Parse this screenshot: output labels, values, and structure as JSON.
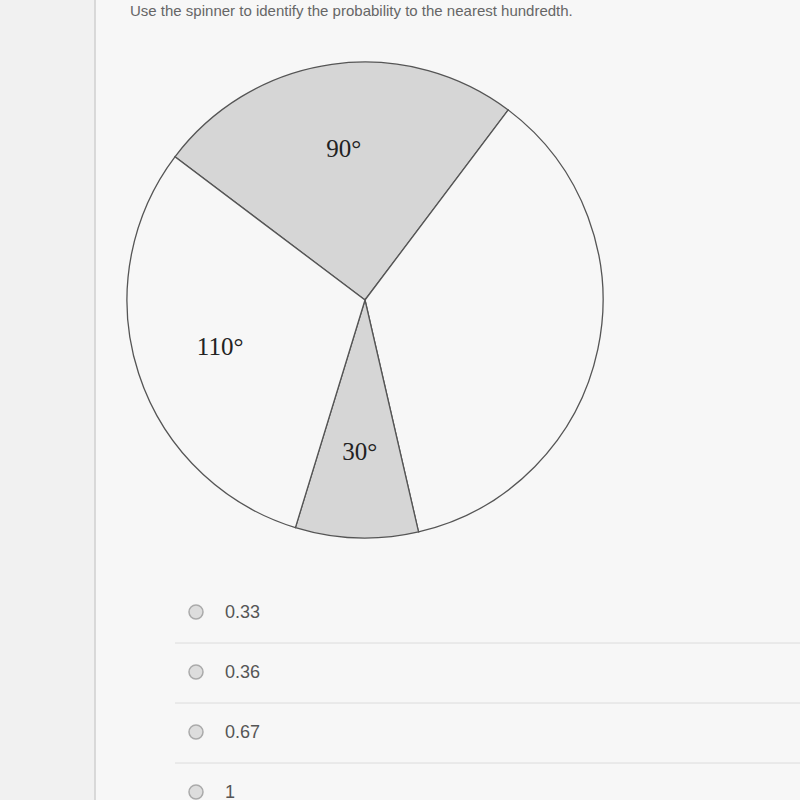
{
  "chart_data": {
    "type": "pie",
    "values": [
      90,
      130,
      30,
      110
    ],
    "value_labels": [
      "90°",
      null,
      "30°",
      "110°"
    ],
    "colors": [
      "#d6d6d6",
      "#f7f7f7",
      "#d6d6d6",
      "#f7f7f7"
    ],
    "data_labels": true
  },
  "question": {
    "text": "Use the spinner to identify the probability to the nearest hundredth.",
    "options": [
      "0.33",
      "0.36",
      "0.67",
      "1"
    ]
  }
}
